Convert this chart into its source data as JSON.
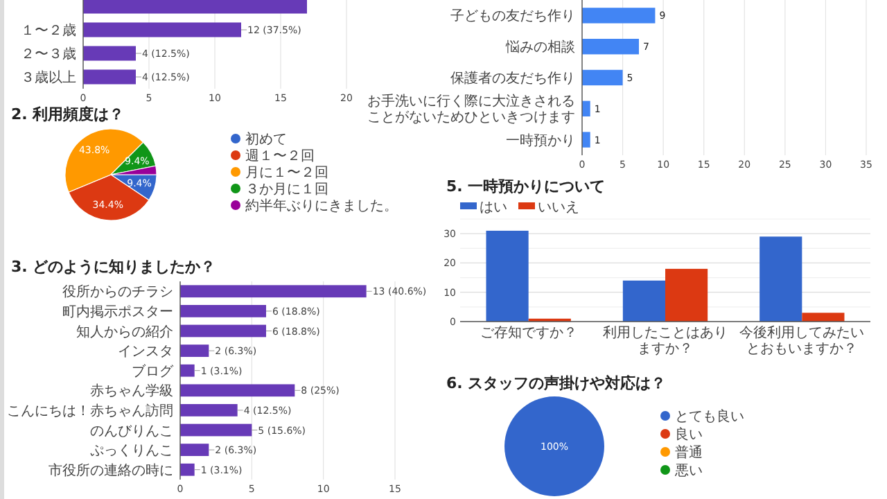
{
  "chart_data": [
    {
      "type": "bar",
      "orientation": "horizontal",
      "categories": [
        null,
        "１〜２歳",
        "２〜３歳",
        "３歳以上"
      ],
      "values": [
        17,
        12,
        4,
        4
      ],
      "value_labels": [
        null,
        "12 (37.5%)",
        "4 (12.5%)",
        "4 (12.5%)"
      ],
      "color": "#673ab7",
      "xlim": [
        0,
        20
      ],
      "xticks": [
        0,
        5,
        10,
        15,
        20
      ],
      "grid": "x"
    },
    {
      "type": "pie",
      "title": "2. 利用頻度は？",
      "categories": [
        "初めて",
        "週１〜２回",
        "月に１〜２回",
        "３か月に１回",
        "約半年ぶりにきました。"
      ],
      "values": [
        9.4,
        34.4,
        43.8,
        9.4,
        3.1
      ],
      "colors": [
        "#3366cc",
        "#dc3912",
        "#ff9900",
        "#109618",
        "#990099"
      ],
      "value_labels": [
        "9.4%",
        "34.4%",
        "43.8%",
        "9.4%",
        null
      ],
      "legend": "right"
    },
    {
      "type": "bar",
      "orientation": "horizontal",
      "title": "3. どのように知りましたか？",
      "categories": [
        "役所からのチラシ",
        "町内掲示ポスター",
        "知人からの紹介",
        "インスタ",
        "ブログ",
        "赤ちゃん学級",
        "こんにちは！赤ちゃん訪問",
        "のんびりんこ",
        "ぷっくりんこ",
        "市役所の連絡の時に"
      ],
      "values": [
        13,
        6,
        6,
        2,
        1,
        8,
        4,
        5,
        2,
        1
      ],
      "value_labels": [
        "13 (40.6%)",
        "6 (18.8%)",
        "6 (18.8%)",
        "2 (6.3%)",
        "1 (3.1%)",
        "8 (25%)",
        "4 (12.5%)",
        "5 (15.6%)",
        "2 (6.3%)",
        "1 (3.1%)"
      ],
      "color": "#673ab7",
      "xlim": [
        0,
        15
      ],
      "xticks": [
        0,
        5,
        10,
        15
      ],
      "grid": "x"
    },
    {
      "type": "bar",
      "orientation": "horizontal",
      "categories": [
        "子どもの友だち作り",
        "悩みの相談",
        "保護者の友だち作り",
        "お手洗いに行く際に大泣きされることがないためひといきつけます",
        "一時預かり"
      ],
      "values": [
        9,
        7,
        5,
        1,
        1
      ],
      "data_labels": true,
      "color": "#4285f4",
      "xlim": [
        0,
        35
      ],
      "xticks": [
        0,
        5,
        10,
        15,
        20,
        25,
        30,
        35
      ],
      "grid": "x"
    },
    {
      "type": "bar",
      "title": "5. 一時預かりについて",
      "categories": [
        "ご存知ですか？",
        "利用したことはありますか？",
        "今後利用してみたいとおもいますか？"
      ],
      "series": [
        {
          "name": "はい",
          "color": "#3366cc",
          "values": [
            31,
            14,
            29
          ]
        },
        {
          "name": "いいえ",
          "color": "#dc3912",
          "values": [
            1,
            18,
            3
          ]
        }
      ],
      "ylim": [
        0,
        35
      ],
      "yticks": [
        0,
        {
          "value": 5,
          "label": null
        },
        10,
        {
          "value": 15,
          "label": null
        },
        20,
        {
          "value": 25,
          "label": null
        },
        30,
        {
          "value": 35,
          "label": null
        }
      ],
      "grid": "y",
      "legend": "top left"
    },
    {
      "type": "pie",
      "title": "6. スタッフの声掛けや対応は？",
      "categories": [
        "とても良い",
        "良い",
        "普通",
        "悪い"
      ],
      "values": [
        100,
        0,
        0,
        0
      ],
      "colors": [
        "#3366cc",
        "#dc3912",
        "#ff9900",
        "#109618"
      ],
      "value_labels": [
        "100%",
        null,
        null,
        null
      ],
      "legend": "right"
    }
  ]
}
